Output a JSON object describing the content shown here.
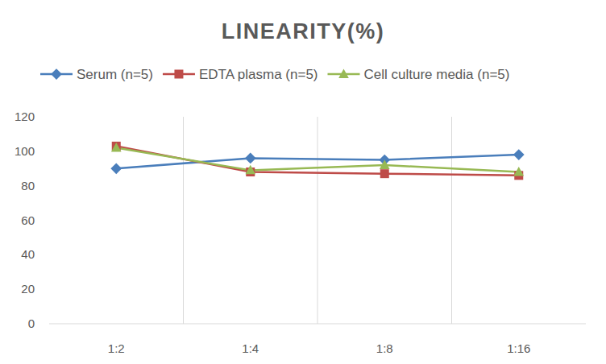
{
  "chart_data": {
    "type": "line",
    "title": "LINEARITY(%)",
    "categories": [
      "1:2",
      "1:4",
      "1:8",
      "1:16"
    ],
    "series": [
      {
        "name": "Serum (n=5)",
        "color": "#4a7ebb",
        "marker": "diamond",
        "values": [
          90,
          96,
          95,
          98
        ]
      },
      {
        "name": "EDTA plasma (n=5)",
        "color": "#be4b48",
        "marker": "square",
        "values": [
          103,
          88,
          87,
          86
        ]
      },
      {
        "name": "Cell culture media (n=5)",
        "color": "#98b954",
        "marker": "triangle",
        "values": [
          102,
          89,
          92,
          88
        ]
      }
    ],
    "ylim": [
      0,
      120
    ],
    "yticks": [
      0,
      20,
      40,
      60,
      80,
      100,
      120
    ],
    "grid": true,
    "legend": "top"
  }
}
